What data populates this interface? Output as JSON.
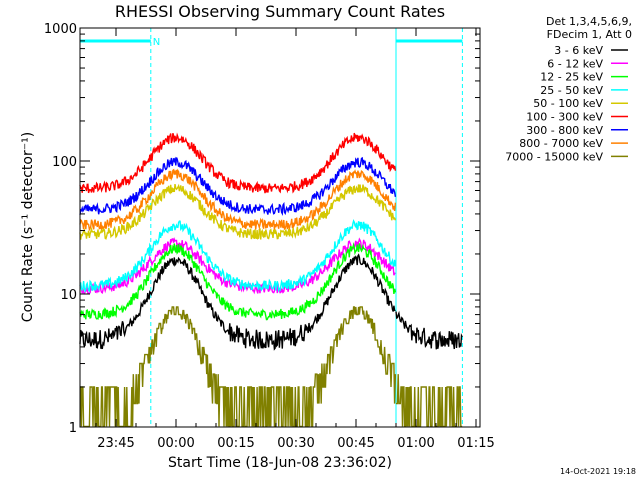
{
  "chart_data": {
    "type": "line",
    "title": "RHESSI Observing Summary Count Rates",
    "xlabel": "Start Time (18-Jun-08 23:36:02)",
    "ylabel": "Count Rate (s⁻¹ detector⁻¹)",
    "y_scale": "log",
    "ylim": [
      1,
      1000
    ],
    "xlim_minutes": [
      -24,
      76
    ],
    "x_ticks": [
      {
        "minutes": -15,
        "label": "23:45"
      },
      {
        "minutes": 0,
        "label": "00:00"
      },
      {
        "minutes": 15,
        "label": "00:15"
      },
      {
        "minutes": 30,
        "label": "00:30"
      },
      {
        "minutes": 45,
        "label": "00:45"
      },
      {
        "minutes": 60,
        "label": "01:00"
      },
      {
        "minutes": 75,
        "label": "01:15"
      }
    ],
    "y_ticks": [
      {
        "value": 1,
        "label": "1"
      },
      {
        "value": 10,
        "label": "10"
      },
      {
        "value": 100,
        "label": "100"
      },
      {
        "value": 1000,
        "label": "1000"
      }
    ],
    "legend_header": [
      "Det 1,3,4,5,6,9,",
      "FDecim 1, Att 0"
    ],
    "legend_placement": "right",
    "night_bars": [
      {
        "start_minutes": -24,
        "end_minutes": -6.3,
        "label": "N"
      },
      {
        "start_minutes": 55,
        "end_minutes": 71.6,
        "label": ""
      }
    ],
    "series": [
      {
        "name": "3 - 6 keV",
        "color": "#000000",
        "base": 4.5,
        "peak": 18
      },
      {
        "name": "6 - 12 keV",
        "color": "#ff00ff",
        "base": 11,
        "peak": 24
      },
      {
        "name": "12 - 25 keV",
        "color": "#00ff00",
        "base": 7,
        "peak": 22
      },
      {
        "name": "25 - 50 keV",
        "color": "#00ffff",
        "base": 11.5,
        "peak": 33
      },
      {
        "name": "50 - 100 keV",
        "color": "#d4c800",
        "base": 28,
        "peak": 62
      },
      {
        "name": "100 - 300 keV",
        "color": "#ff0000",
        "base": 62,
        "peak": 150
      },
      {
        "name": "300 - 800 keV",
        "color": "#0000ff",
        "base": 43,
        "peak": 98
      },
      {
        "name": "800 - 7000 keV",
        "color": "#ff8000",
        "base": 33,
        "peak": 80
      },
      {
        "name": "7000 - 15000 keV",
        "color": "#808000",
        "base": 1.5,
        "peak": 8
      }
    ],
    "timestamp": "14-Oct-2021 19:18"
  }
}
